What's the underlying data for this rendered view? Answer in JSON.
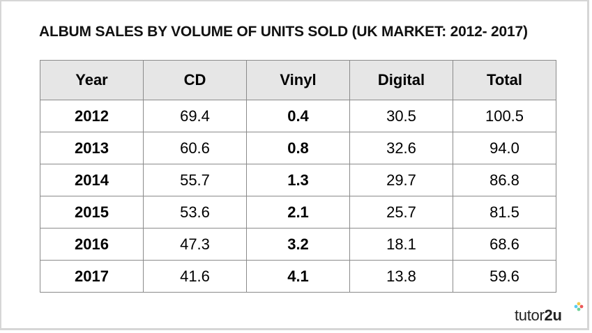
{
  "chart_data": {
    "type": "table",
    "title": "ALBUM SALES BY VOLUME OF UNITS SOLD (UK MARKET: 2012- 2017)",
    "columns": [
      "Year",
      "CD",
      "Vinyl",
      "Digital",
      "Total"
    ],
    "rows": [
      [
        "2012",
        "69.4",
        "0.4",
        "30.5",
        "100.5"
      ],
      [
        "2013",
        "60.6",
        "0.8",
        "32.6",
        "94.0"
      ],
      [
        "2014",
        "55.7",
        "1.3",
        "29.7",
        "86.8"
      ],
      [
        "2015",
        "53.6",
        "2.1",
        "25.7",
        "81.5"
      ],
      [
        "2016",
        "47.3",
        "3.2",
        "18.1",
        "68.6"
      ],
      [
        "2017",
        "41.6",
        "4.1",
        "13.8",
        "59.6"
      ]
    ],
    "highlight_column": "Vinyl",
    "highlight_color": "#e31b1b"
  },
  "brand": {
    "name_light": "tutor",
    "name_bold": "2u"
  },
  "colors": {
    "header_bg": "#e6e6e6",
    "border": "#8a8a8a"
  }
}
